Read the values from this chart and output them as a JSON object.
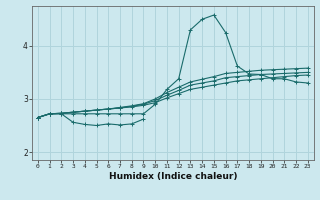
{
  "xlabel": "Humidex (Indice chaleur)",
  "bg_color": "#cce8ee",
  "grid_color": "#b0d4dc",
  "line_color": "#1a6b6b",
  "xlim": [
    -0.5,
    23.5
  ],
  "ylim": [
    1.85,
    4.75
  ],
  "yticks": [
    2,
    3,
    4
  ],
  "xticks": [
    0,
    1,
    2,
    3,
    4,
    5,
    6,
    7,
    8,
    9,
    10,
    11,
    12,
    13,
    14,
    15,
    16,
    17,
    18,
    19,
    20,
    21,
    22,
    23
  ],
  "series_dip_x": [
    0,
    1,
    2,
    3,
    4,
    5,
    6,
    7,
    8,
    9
  ],
  "series_dip_y": [
    2.65,
    2.72,
    2.72,
    2.56,
    2.52,
    2.5,
    2.53,
    2.51,
    2.53,
    2.62
  ],
  "series_peak_x": [
    0,
    1,
    2,
    3,
    4,
    5,
    6,
    7,
    8,
    9,
    10,
    11,
    12,
    13,
    14,
    15,
    16,
    17,
    18,
    19,
    20,
    21,
    22,
    23
  ],
  "series_peak_y": [
    2.65,
    2.72,
    2.72,
    2.72,
    2.72,
    2.72,
    2.72,
    2.72,
    2.72,
    2.72,
    2.9,
    3.18,
    3.38,
    4.3,
    4.5,
    4.58,
    4.25,
    3.62,
    3.47,
    3.46,
    3.38,
    3.38,
    3.32,
    3.3
  ],
  "series_mid_x": [
    0,
    1,
    2,
    3,
    4,
    5,
    6,
    7,
    8,
    9,
    10,
    11,
    12,
    13,
    14,
    15,
    16,
    17,
    18,
    19,
    20,
    21,
    22,
    23
  ],
  "series_mid_y": [
    2.65,
    2.72,
    2.73,
    2.75,
    2.77,
    2.79,
    2.81,
    2.83,
    2.86,
    2.9,
    2.97,
    3.07,
    3.16,
    3.26,
    3.3,
    3.34,
    3.4,
    3.42,
    3.44,
    3.46,
    3.47,
    3.48,
    3.49,
    3.5
  ],
  "series_low_x": [
    0,
    1,
    2,
    3,
    4,
    5,
    6,
    7,
    8,
    9,
    10,
    11,
    12,
    13,
    14,
    15,
    16,
    17,
    18,
    19,
    20,
    21,
    22,
    23
  ],
  "series_low_y": [
    2.65,
    2.72,
    2.73,
    2.75,
    2.77,
    2.79,
    2.81,
    2.83,
    2.85,
    2.88,
    2.93,
    3.02,
    3.1,
    3.18,
    3.22,
    3.26,
    3.3,
    3.34,
    3.36,
    3.38,
    3.4,
    3.42,
    3.44,
    3.45
  ],
  "series_high_x": [
    0,
    1,
    2,
    3,
    4,
    5,
    6,
    7,
    8,
    9,
    10,
    11,
    12,
    13,
    14,
    15,
    16,
    17,
    18,
    19,
    20,
    21,
    22,
    23
  ],
  "series_high_y": [
    2.65,
    2.72,
    2.73,
    2.75,
    2.77,
    2.79,
    2.81,
    2.84,
    2.87,
    2.91,
    3.0,
    3.12,
    3.22,
    3.32,
    3.37,
    3.42,
    3.48,
    3.5,
    3.52,
    3.54,
    3.55,
    3.56,
    3.57,
    3.58
  ]
}
